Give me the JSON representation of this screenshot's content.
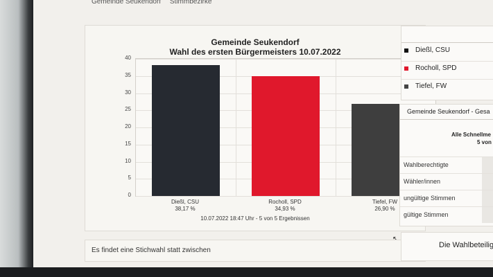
{
  "nav": {
    "items": [
      "Gemeinde Seukendorf",
      "Stimmbezirke"
    ]
  },
  "chart_data": {
    "type": "bar",
    "title": "Gemeinde Seukendorf",
    "subtitle": "Wahl des ersten Bürgermeisters 10.07.2022",
    "categories": [
      "Dießl, CSU",
      "Rocholl, SPD",
      "Tiefel, FW"
    ],
    "values": [
      38.17,
      34.93,
      26.9
    ],
    "value_labels": [
      "38,17 %",
      "34,93 %",
      "26,90 %"
    ],
    "colors": [
      "#262a31",
      "#e0182c",
      "#3e3e3e"
    ],
    "ylim": [
      0,
      40
    ],
    "yticks": [
      "0",
      "5",
      "10",
      "15",
      "20",
      "25",
      "30",
      "35",
      "40"
    ],
    "grid": true,
    "footnote": "10.07.2022 18:47 Uhr - 5 von 5 Ergebnissen"
  },
  "legend": {
    "items": [
      {
        "label": "Dießl, CSU",
        "color": "#111111"
      },
      {
        "label": "Rocholl, SPD",
        "color": "#e0182c"
      },
      {
        "label": "Tiefel, FW",
        "color": "#444444"
      }
    ]
  },
  "results": {
    "title": "Gemeinde Seukendorf - Gesa",
    "subtitle_line1": "Alle Schnellme",
    "subtitle_line2": "5 von",
    "rows": [
      "Wahlberechtigte",
      "Wähler/innen",
      "ungültige Stimmen",
      "gültige Stimmen"
    ]
  },
  "stichwahl": {
    "text": "Es findet eine Stichwahl statt zwischen"
  },
  "wahlbeteiligung": {
    "title": "Die Wahlbeteilig"
  }
}
